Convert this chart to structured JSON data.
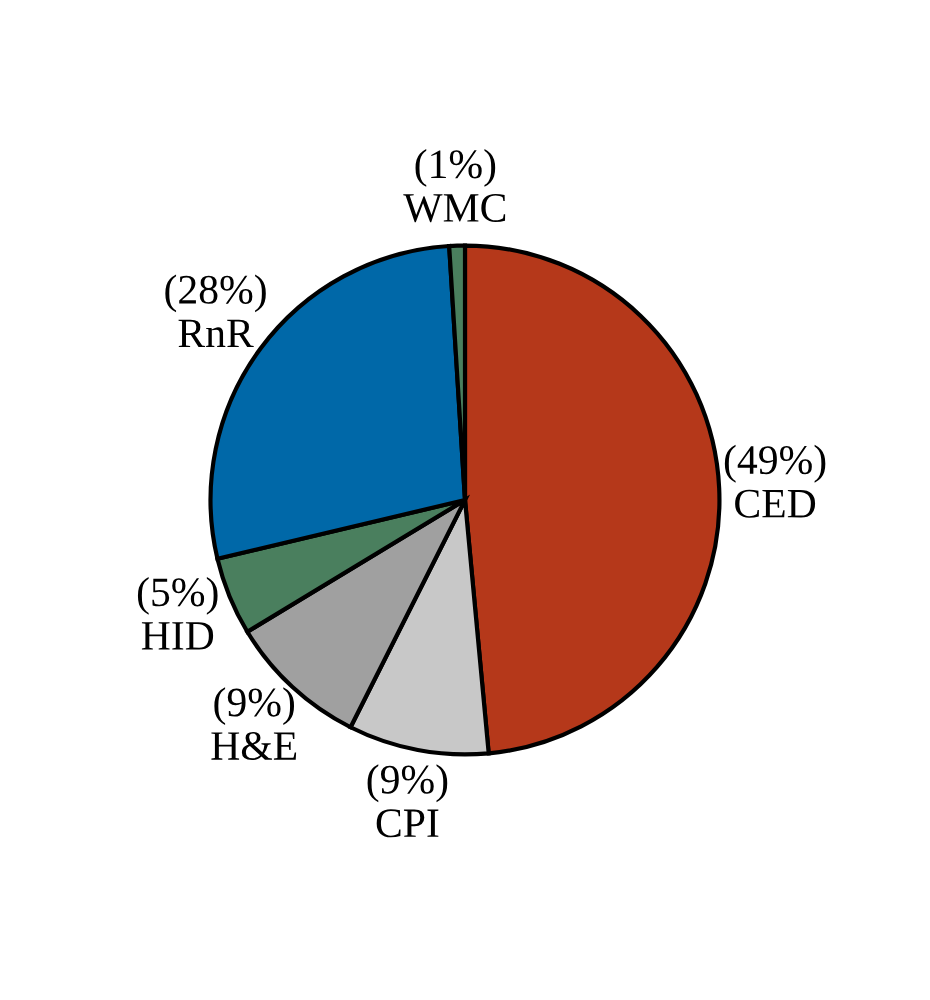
{
  "chart_data": {
    "type": "pie",
    "categories": [
      "CED",
      "CPI",
      "H&E",
      "HID",
      "RnR",
      "WMC"
    ],
    "values": [
      49,
      9,
      9,
      5,
      28,
      1
    ],
    "value_labels": [
      "(49%)",
      "(9%)",
      "(9%)",
      "(5%)",
      "(28%)",
      "(1%)"
    ],
    "colors": [
      "#b5381a",
      "#c8c8c8",
      "#a0a0a0",
      "#4a7f5e",
      "#0068a8",
      "#4a7f5e"
    ],
    "legend": false
  }
}
